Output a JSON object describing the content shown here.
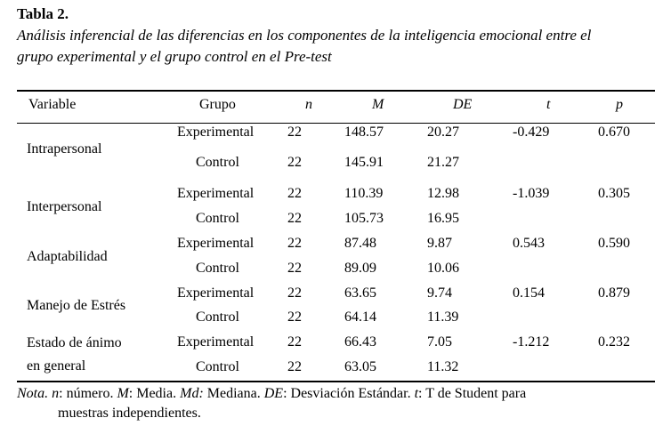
{
  "title": "Tabla 2.",
  "caption_line1": "Análisis inferencial de las diferencias en los componentes de la inteligencia emocional entre el",
  "caption_line2": "grupo experimental y el grupo control en el Pre-test",
  "headers": {
    "variable": "Variable",
    "grupo": "Grupo",
    "n": "n",
    "m": "M",
    "de": "DE",
    "t": "t",
    "p": "p"
  },
  "rows": [
    {
      "variable": [
        "Intrapersonal"
      ],
      "t": "-0.429",
      "p": "0.670",
      "groups": [
        {
          "grupo": "Experimental",
          "n": "22",
          "m": "148.57",
          "de": "20.27"
        },
        {
          "grupo": "Control",
          "n": "22",
          "m": "145.91",
          "de": "21.27"
        }
      ]
    },
    {
      "variable": [
        "Interpersonal"
      ],
      "t": "-1.039",
      "p": "0.305",
      "groups": [
        {
          "grupo": "Experimental",
          "n": "22",
          "m": "110.39",
          "de": "12.98"
        },
        {
          "grupo": "Control",
          "n": "22",
          "m": "105.73",
          "de": "16.95"
        }
      ]
    },
    {
      "variable": [
        "Adaptabilidad"
      ],
      "t": "0.543",
      "p": "0.590",
      "groups": [
        {
          "grupo": "Experimental",
          "n": "22",
          "m": "87.48",
          "de": "9.87"
        },
        {
          "grupo": "Control",
          "n": "22",
          "m": "89.09",
          "de": "10.06"
        }
      ]
    },
    {
      "variable": [
        "Manejo de Estrés"
      ],
      "t": "0.154",
      "p": "0.879",
      "groups": [
        {
          "grupo": "Experimental",
          "n": "22",
          "m": "63.65",
          "de": "9.74"
        },
        {
          "grupo": "Control",
          "n": "22",
          "m": "64.14",
          "de": "11.39"
        }
      ]
    },
    {
      "variable": [
        "Estado de ánimo",
        "en general"
      ],
      "t": "-1.212",
      "p": "0.232",
      "groups": [
        {
          "grupo": "Experimental",
          "n": "22",
          "m": "66.43",
          "de": "7.05"
        },
        {
          "grupo": "Control",
          "n": "22",
          "m": "63.05",
          "de": "11.32"
        }
      ]
    }
  ],
  "note": {
    "nota": "Nota.",
    "n_sym": "n",
    "n_txt": ": número.",
    "m_sym": "M",
    "m_txt": ": Media.",
    "md_sym": "Md:",
    "md_txt": " Mediana.",
    "de_sym": "DE",
    "de_txt": ": Desviación Estándar.",
    "t_sym": "t",
    "t_txt": ": T de Student para",
    "line2": "muestras independientes."
  }
}
